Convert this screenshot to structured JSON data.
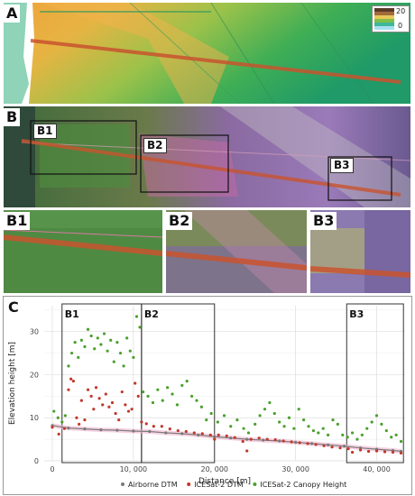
{
  "panels": {
    "a": {
      "label": "A",
      "legend_max": "20",
      "legend_min": "0"
    },
    "b": {
      "label": "B",
      "boxes": [
        "B1",
        "B2",
        "B3"
      ]
    },
    "zoom": [
      "B1",
      "B2",
      "B3"
    ],
    "c": {
      "label": "C"
    }
  },
  "colors": {
    "airborne": "#7a7a7a",
    "icesat_dtm": "#c0392b",
    "icesat_canopy": "#4aa02c",
    "track": "#c9542f"
  },
  "chart_data": {
    "type": "scatter",
    "xlabel": "Distance [m]",
    "ylabel": "Elevation height [m]",
    "xlim": [
      -1000,
      43500
    ],
    "ylim": [
      0,
      36
    ],
    "xticks": [
      0,
      10000,
      20000,
      30000,
      40000
    ],
    "xtick_labels": [
      "0",
      "10, 000",
      "20, 000",
      "30, 000",
      "40, 000"
    ],
    "yticks": [
      0,
      10,
      20,
      30
    ],
    "yticks_labels": [
      "0",
      "10",
      "20",
      "30"
    ],
    "grid": true,
    "legend_position": "bottom",
    "regions": [
      {
        "label": "B1",
        "x0": 1200,
        "x1": 11000
      },
      {
        "label": "B2",
        "x0": 11000,
        "x1": 20000
      },
      {
        "label": "B3",
        "x0": 36300,
        "x1": 43300
      }
    ],
    "series": [
      {
        "name": "Airborne DTM",
        "points": [
          [
            0,
            8.2
          ],
          [
            2000,
            7.6
          ],
          [
            4000,
            7.4
          ],
          [
            6000,
            7.2
          ],
          [
            8000,
            7.1
          ],
          [
            10000,
            6.9
          ],
          [
            12000,
            6.8
          ],
          [
            14000,
            6.5
          ],
          [
            16000,
            6.3
          ],
          [
            18000,
            6.0
          ],
          [
            20000,
            5.6
          ],
          [
            22000,
            5.3
          ],
          [
            24000,
            5.0
          ],
          [
            26000,
            4.8
          ],
          [
            28000,
            4.6
          ],
          [
            30000,
            4.3
          ],
          [
            32000,
            4.0
          ],
          [
            34000,
            3.7
          ],
          [
            36000,
            3.4
          ],
          [
            38000,
            3.0
          ],
          [
            40000,
            2.7
          ],
          [
            42000,
            2.4
          ],
          [
            43000,
            2.2
          ]
        ]
      },
      {
        "name": "ICESat-2 DTM",
        "points": [
          [
            0,
            7.8
          ],
          [
            800,
            6.2
          ],
          [
            1500,
            7.5
          ],
          [
            2000,
            16.5
          ],
          [
            2300,
            19.0
          ],
          [
            2600,
            18.5
          ],
          [
            3000,
            10.0
          ],
          [
            3300,
            8.5
          ],
          [
            3600,
            14.0
          ],
          [
            4000,
            9.5
          ],
          [
            4400,
            16.5
          ],
          [
            4800,
            15.0
          ],
          [
            5100,
            12.0
          ],
          [
            5400,
            17.0
          ],
          [
            5800,
            14.5
          ],
          [
            6200,
            13.0
          ],
          [
            6600,
            15.5
          ],
          [
            7000,
            12.5
          ],
          [
            7400,
            13.5
          ],
          [
            7800,
            11.0
          ],
          [
            8200,
            9.5
          ],
          [
            8600,
            16.0
          ],
          [
            9000,
            13.0
          ],
          [
            9400,
            11.5
          ],
          [
            9800,
            12.0
          ],
          [
            10200,
            18.0
          ],
          [
            10600,
            15.0
          ],
          [
            11000,
            9.0
          ],
          [
            11600,
            8.6
          ],
          [
            12500,
            8.0
          ],
          [
            13500,
            8.0
          ],
          [
            14500,
            7.4
          ],
          [
            15500,
            7.0
          ],
          [
            16500,
            6.8
          ],
          [
            17500,
            6.5
          ],
          [
            18500,
            6.3
          ],
          [
            19500,
            6.0
          ],
          [
            20000,
            5.0
          ],
          [
            20500,
            6.0
          ],
          [
            21500,
            5.8
          ],
          [
            22500,
            5.4
          ],
          [
            23500,
            4.5
          ],
          [
            24000,
            2.3
          ],
          [
            24500,
            5.0
          ],
          [
            25500,
            5.3
          ],
          [
            26500,
            5.0
          ],
          [
            27500,
            4.9
          ],
          [
            28500,
            4.6
          ],
          [
            29500,
            4.4
          ],
          [
            30500,
            4.2
          ],
          [
            31500,
            4.0
          ],
          [
            32500,
            3.8
          ],
          [
            33500,
            3.5
          ],
          [
            34500,
            3.2
          ],
          [
            35500,
            3.0
          ],
          [
            36500,
            2.8
          ],
          [
            37000,
            2.0
          ],
          [
            38000,
            2.5
          ],
          [
            39000,
            2.2
          ],
          [
            40000,
            2.3
          ],
          [
            41000,
            2.1
          ],
          [
            42000,
            2.0
          ],
          [
            43000,
            1.8
          ]
        ]
      },
      {
        "name": "ICESat-2 Canopy Height",
        "points": [
          [
            200,
            11.5
          ],
          [
            700,
            10.0
          ],
          [
            1200,
            9.0
          ],
          [
            1600,
            10.5
          ],
          [
            2000,
            22.0
          ],
          [
            2400,
            25.0
          ],
          [
            2800,
            27.5
          ],
          [
            3200,
            24.0
          ],
          [
            3600,
            28.0
          ],
          [
            4000,
            26.5
          ],
          [
            4400,
            30.5
          ],
          [
            4800,
            29.0
          ],
          [
            5200,
            26.0
          ],
          [
            5600,
            28.5
          ],
          [
            6000,
            27.0
          ],
          [
            6400,
            29.5
          ],
          [
            6800,
            25.5
          ],
          [
            7200,
            28.0
          ],
          [
            7600,
            23.0
          ],
          [
            8000,
            27.5
          ],
          [
            8400,
            25.0
          ],
          [
            8800,
            22.0
          ],
          [
            9200,
            28.5
          ],
          [
            9600,
            25.5
          ],
          [
            10000,
            24.0
          ],
          [
            10400,
            33.5
          ],
          [
            10800,
            31.0
          ],
          [
            11200,
            16.0
          ],
          [
            11800,
            15.0
          ],
          [
            12400,
            13.5
          ],
          [
            13000,
            16.5
          ],
          [
            13600,
            14.0
          ],
          [
            14200,
            17.0
          ],
          [
            14800,
            15.5
          ],
          [
            15400,
            13.0
          ],
          [
            16000,
            17.5
          ],
          [
            16600,
            18.5
          ],
          [
            17200,
            15.0
          ],
          [
            17800,
            14.0
          ],
          [
            18400,
            12.5
          ],
          [
            19000,
            9.5
          ],
          [
            19600,
            11.0
          ],
          [
            20400,
            9.0
          ],
          [
            21200,
            10.5
          ],
          [
            22000,
            8.0
          ],
          [
            22800,
            9.5
          ],
          [
            23600,
            7.5
          ],
          [
            24200,
            6.5
          ],
          [
            25000,
            8.5
          ],
          [
            25600,
            10.5
          ],
          [
            26200,
            12.0
          ],
          [
            26800,
            13.5
          ],
          [
            27400,
            11.0
          ],
          [
            28000,
            9.0
          ],
          [
            28600,
            8.0
          ],
          [
            29200,
            10.0
          ],
          [
            29800,
            7.5
          ],
          [
            30400,
            12.0
          ],
          [
            31000,
            9.5
          ],
          [
            31600,
            8.0
          ],
          [
            32200,
            7.0
          ],
          [
            32800,
            6.5
          ],
          [
            33400,
            7.5
          ],
          [
            34000,
            6.0
          ],
          [
            34600,
            9.5
          ],
          [
            35200,
            8.5
          ],
          [
            35800,
            6.0
          ],
          [
            36400,
            5.5
          ],
          [
            37000,
            6.5
          ],
          [
            37600,
            5.0
          ],
          [
            38200,
            6.0
          ],
          [
            38800,
            7.5
          ],
          [
            39400,
            9.0
          ],
          [
            40000,
            10.5
          ],
          [
            40600,
            8.5
          ],
          [
            41200,
            7.0
          ],
          [
            41800,
            5.5
          ],
          [
            42400,
            6.0
          ],
          [
            43000,
            4.5
          ]
        ]
      }
    ]
  }
}
